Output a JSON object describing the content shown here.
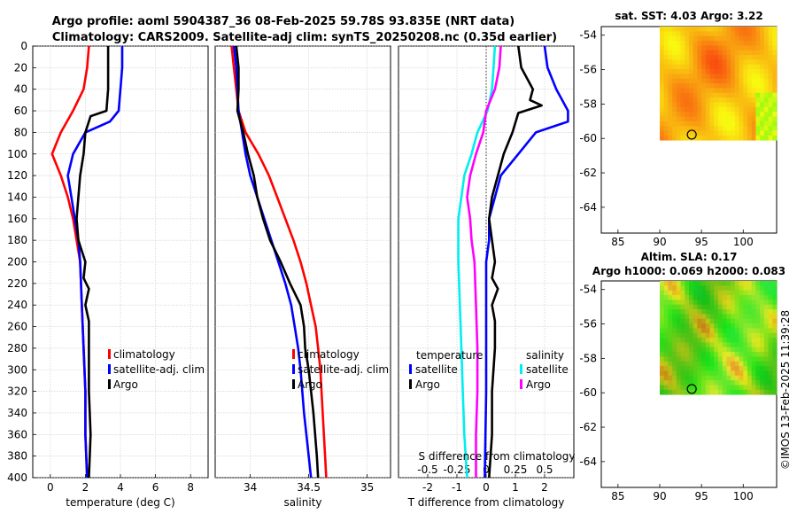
{
  "title": {
    "line1": "Argo profile: aoml 5904387_36 08-Feb-2025 59.78S 93.835E (NRT data)",
    "line2": "Climatology: CARS2009. Satellite-adj clim: synTS_20250208.nc (0.35d earlier)"
  },
  "footer": "©IMOS 13-Feb-2025 11:39:28",
  "colors": {
    "clim": "#ff0000",
    "sat": "#0000ff",
    "argo": "#000000",
    "sat_s": "#00eeee",
    "argo_s": "#ff00ff"
  },
  "chart_data": [
    {
      "type": "line",
      "name": "temperature",
      "xlabel": "temperature (deg C)",
      "ylabel": "",
      "xlim": [
        -1,
        9
      ],
      "ylim": [
        0,
        400
      ],
      "xticks": [
        0,
        2,
        4,
        6,
        8
      ],
      "yticks": [
        0,
        20,
        40,
        60,
        80,
        100,
        120,
        140,
        160,
        180,
        200,
        220,
        240,
        260,
        280,
        300,
        320,
        340,
        360,
        380,
        400
      ],
      "grid": true,
      "legend_position": "center-right",
      "series": [
        {
          "name": "climatology",
          "color": "#ff0000",
          "points": [
            [
              2.2,
              0
            ],
            [
              2.1,
              20
            ],
            [
              1.9,
              40
            ],
            [
              1.3,
              60
            ],
            [
              0.6,
              80
            ],
            [
              0.1,
              100
            ],
            [
              0.6,
              120
            ],
            [
              1.0,
              140
            ],
            [
              1.3,
              160
            ],
            [
              1.5,
              180
            ],
            [
              1.7,
              200
            ],
            [
              1.8,
              240
            ],
            [
              1.9,
              280
            ],
            [
              2.0,
              320
            ],
            [
              2.0,
              360
            ],
            [
              2.1,
              400
            ]
          ]
        },
        {
          "name": "satellite-adj. clim",
          "color": "#0000ff",
          "points": [
            [
              4.1,
              0
            ],
            [
              4.1,
              20
            ],
            [
              4.0,
              40
            ],
            [
              3.9,
              60
            ],
            [
              3.4,
              70
            ],
            [
              2.0,
              80
            ],
            [
              1.3,
              100
            ],
            [
              1.0,
              120
            ],
            [
              1.2,
              140
            ],
            [
              1.4,
              160
            ],
            [
              1.6,
              180
            ],
            [
              1.7,
              200
            ],
            [
              1.8,
              240
            ],
            [
              1.9,
              280
            ],
            [
              2.0,
              320
            ],
            [
              2.0,
              360
            ],
            [
              2.1,
              400
            ]
          ]
        },
        {
          "name": "Argo",
          "color": "#000000",
          "points": [
            [
              3.3,
              0
            ],
            [
              3.3,
              20
            ],
            [
              3.3,
              40
            ],
            [
              3.2,
              60
            ],
            [
              2.3,
              65
            ],
            [
              2.0,
              80
            ],
            [
              1.9,
              100
            ],
            [
              1.7,
              120
            ],
            [
              1.6,
              140
            ],
            [
              1.5,
              160
            ],
            [
              1.6,
              180
            ],
            [
              2.0,
              200
            ],
            [
              1.9,
              215
            ],
            [
              2.2,
              225
            ],
            [
              2.0,
              240
            ],
            [
              2.2,
              255
            ],
            [
              2.2,
              280
            ],
            [
              2.2,
              320
            ],
            [
              2.3,
              360
            ],
            [
              2.2,
              400
            ]
          ]
        }
      ]
    },
    {
      "type": "line",
      "name": "salinity",
      "xlabel": "salinity",
      "xlim": [
        33.7,
        35.2
      ],
      "ylim": [
        0,
        400
      ],
      "xticks": [
        34,
        34.5,
        35
      ],
      "grid": true,
      "legend_position": "center-right",
      "series": [
        {
          "name": "climatology",
          "color": "#ff0000",
          "points": [
            [
              33.84,
              0
            ],
            [
              33.86,
              20
            ],
            [
              33.88,
              40
            ],
            [
              33.9,
              60
            ],
            [
              33.96,
              80
            ],
            [
              34.07,
              100
            ],
            [
              34.16,
              120
            ],
            [
              34.23,
              140
            ],
            [
              34.3,
              160
            ],
            [
              34.37,
              180
            ],
            [
              34.43,
              200
            ],
            [
              34.48,
              220
            ],
            [
              34.52,
              240
            ],
            [
              34.56,
              260
            ],
            [
              34.58,
              280
            ],
            [
              34.6,
              300
            ],
            [
              34.62,
              340
            ],
            [
              34.64,
              380
            ],
            [
              34.65,
              400
            ]
          ]
        },
        {
          "name": "satellite-adj. clim",
          "color": "#0000ff",
          "points": [
            [
              33.86,
              0
            ],
            [
              33.88,
              20
            ],
            [
              33.89,
              40
            ],
            [
              33.9,
              60
            ],
            [
              33.93,
              80
            ],
            [
              33.96,
              100
            ],
            [
              34.0,
              120
            ],
            [
              34.06,
              140
            ],
            [
              34.12,
              160
            ],
            [
              34.18,
              180
            ],
            [
              34.24,
              200
            ],
            [
              34.3,
              220
            ],
            [
              34.35,
              240
            ],
            [
              34.38,
              260
            ],
            [
              34.41,
              280
            ],
            [
              34.43,
              300
            ],
            [
              34.46,
              340
            ],
            [
              34.49,
              370
            ],
            [
              34.52,
              400
            ]
          ]
        },
        {
          "name": "Argo",
          "color": "#000000",
          "points": [
            [
              33.88,
              0
            ],
            [
              33.9,
              20
            ],
            [
              33.9,
              40
            ],
            [
              33.89,
              60
            ],
            [
              33.94,
              80
            ],
            [
              33.98,
              100
            ],
            [
              34.03,
              120
            ],
            [
              34.06,
              140
            ],
            [
              34.11,
              160
            ],
            [
              34.17,
              180
            ],
            [
              34.26,
              200
            ],
            [
              34.34,
              220
            ],
            [
              34.43,
              240
            ],
            [
              34.46,
              260
            ],
            [
              34.47,
              280
            ],
            [
              34.5,
              300
            ],
            [
              34.54,
              340
            ],
            [
              34.57,
              380
            ],
            [
              34.58,
              400
            ]
          ]
        }
      ]
    },
    {
      "type": "line",
      "name": "difference",
      "xlabel": "T difference from climatology",
      "xlabel_top": "S difference from climatology",
      "xlim": [
        -3,
        3
      ],
      "ylim": [
        0,
        400
      ],
      "xticks": [
        -2,
        -1,
        0,
        1,
        2
      ],
      "xticks_top": [
        -0.5,
        -0.25,
        0,
        0.25,
        0.5
      ],
      "xticks_top_labels": [
        "-0.5",
        "-0.25",
        "0",
        "0.25",
        "0.5"
      ],
      "grid": true,
      "legend_position": "center",
      "series": [
        {
          "name": "temperature satellite",
          "color": "#0000ff",
          "points": [
            [
              2.0,
              0
            ],
            [
              2.1,
              20
            ],
            [
              2.4,
              40
            ],
            [
              2.8,
              60
            ],
            [
              2.8,
              70
            ],
            [
              1.7,
              80
            ],
            [
              1.1,
              100
            ],
            [
              0.5,
              120
            ],
            [
              0.3,
              140
            ],
            [
              0.1,
              160
            ],
            [
              0.1,
              180
            ],
            [
              0.0,
              200
            ],
            [
              0.0,
              260
            ],
            [
              0.0,
              320
            ],
            [
              -0.05,
              400
            ]
          ]
        },
        {
          "name": "temperature Argo",
          "color": "#000000",
          "points": [
            [
              1.1,
              0
            ],
            [
              1.2,
              20
            ],
            [
              1.6,
              40
            ],
            [
              1.5,
              50
            ],
            [
              1.9,
              55
            ],
            [
              1.1,
              62
            ],
            [
              0.9,
              80
            ],
            [
              0.6,
              100
            ],
            [
              0.4,
              120
            ],
            [
              0.2,
              140
            ],
            [
              0.1,
              160
            ],
            [
              0.2,
              180
            ],
            [
              0.3,
              200
            ],
            [
              0.2,
              215
            ],
            [
              0.4,
              225
            ],
            [
              0.2,
              240
            ],
            [
              0.3,
              255
            ],
            [
              0.3,
              280
            ],
            [
              0.2,
              320
            ],
            [
              0.2,
              360
            ],
            [
              0.1,
              400
            ]
          ]
        },
        {
          "name": "salinity satellite",
          "color": "#00eeee",
          "points": [
            [
              0.3,
              0
            ],
            [
              0.25,
              20
            ],
            [
              0.2,
              40
            ],
            [
              0.05,
              60
            ],
            [
              -0.3,
              80
            ],
            [
              -0.5,
              100
            ],
            [
              -0.75,
              120
            ],
            [
              -0.85,
              140
            ],
            [
              -0.95,
              160
            ],
            [
              -0.95,
              200
            ],
            [
              -0.9,
              240
            ],
            [
              -0.85,
              280
            ],
            [
              -0.8,
              320
            ],
            [
              -0.75,
              360
            ],
            [
              -0.65,
              400
            ]
          ]
        },
        {
          "name": "salinity Argo",
          "color": "#ff00ff",
          "points": [
            [
              0.5,
              0
            ],
            [
              0.45,
              20
            ],
            [
              0.3,
              40
            ],
            [
              0.0,
              60
            ],
            [
              -0.1,
              80
            ],
            [
              -0.35,
              100
            ],
            [
              -0.55,
              120
            ],
            [
              -0.65,
              140
            ],
            [
              -0.55,
              160
            ],
            [
              -0.5,
              180
            ],
            [
              -0.4,
              200
            ],
            [
              -0.35,
              240
            ],
            [
              -0.3,
              280
            ],
            [
              -0.3,
              320
            ],
            [
              -0.35,
              360
            ],
            [
              -0.35,
              400
            ]
          ]
        }
      ]
    },
    {
      "type": "heatmap",
      "name": "sst_map",
      "title": "sat. SST: 4.03 Argo: 3.22",
      "xlim": [
        83,
        104
      ],
      "ylim": [
        -65.5,
        -53.5
      ],
      "xticks": [
        85,
        90,
        95,
        100
      ],
      "yticks": [
        -54,
        -56,
        -58,
        -60,
        -62,
        -64
      ],
      "data_extent": {
        "lon": [
          90,
          104
        ],
        "lat": [
          -60.1,
          -53.5
        ]
      },
      "float_position": {
        "lon": 93.835,
        "lat": -59.78
      }
    },
    {
      "type": "heatmap",
      "name": "sla_map",
      "title_line1": "Altim. SLA: 0.17",
      "title_line2": "Argo h1000: 0.069 h2000: 0.083",
      "xlim": [
        83,
        104
      ],
      "ylim": [
        -65.5,
        -53.5
      ],
      "xticks": [
        85,
        90,
        95,
        100
      ],
      "yticks": [
        -54,
        -56,
        -58,
        -60,
        -62,
        -64
      ],
      "data_extent": {
        "lon": [
          90,
          104
        ],
        "lat": [
          -60.1,
          -53.5
        ]
      },
      "float_position": {
        "lon": 93.835,
        "lat": -59.78
      }
    }
  ],
  "legends": {
    "temperature": [
      "climatology",
      "satellite-adj. clim",
      "Argo"
    ],
    "salinity": [
      "climatology",
      "satellite-adj. clim",
      "Argo"
    ],
    "difference": {
      "left_header": "temperature",
      "left_items": [
        "satellite",
        "Argo"
      ],
      "right_header": "salinity",
      "right_items": [
        "satellite",
        "Argo"
      ]
    }
  }
}
